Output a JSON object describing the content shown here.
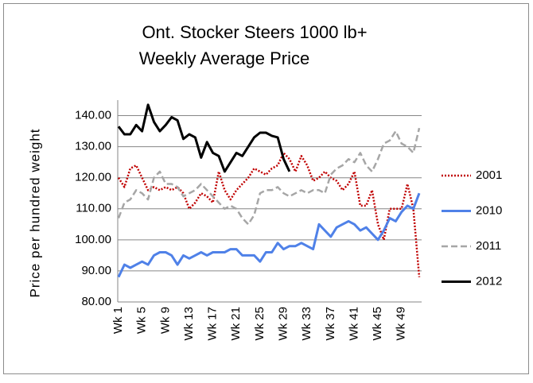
{
  "chart_data": {
    "type": "line",
    "title": "Ont. Stocker Steers 1000 lb+",
    "subtitle": "Weekly Average Price",
    "y_label": "Price per hundred weight",
    "categories": [
      "Wk 1",
      null,
      null,
      null,
      "Wk 5",
      null,
      null,
      null,
      "Wk 9",
      null,
      null,
      null,
      "Wk 13",
      null,
      null,
      null,
      "Wk 17",
      null,
      null,
      null,
      "Wk 21",
      null,
      null,
      null,
      "Wk 25",
      null,
      null,
      null,
      "Wk 29",
      null,
      null,
      null,
      "Wk 33",
      null,
      null,
      null,
      "Wk 37",
      null,
      null,
      null,
      "Wk 41",
      null,
      null,
      null,
      "Wk 45",
      null,
      null,
      null,
      "Wk 49",
      null,
      null,
      null
    ],
    "series": [
      {
        "name": "2001",
        "color": "#c00000",
        "style": "dotted",
        "values": [
          120,
          117,
          123,
          124,
          120,
          116,
          117,
          116,
          117,
          116,
          117,
          115,
          110,
          112,
          115,
          114,
          112,
          122,
          116,
          113,
          116,
          118,
          120,
          123,
          122,
          121,
          123,
          124,
          128,
          126,
          122,
          127,
          124,
          119,
          120,
          122,
          120,
          119,
          116,
          118,
          122,
          111,
          111,
          116,
          105,
          100,
          110,
          110,
          110,
          118,
          110,
          88
        ]
      },
      {
        "name": "2010",
        "color": "#4f81e8",
        "style": "solid",
        "values": [
          88,
          92,
          91,
          92,
          93,
          92,
          95,
          96,
          96,
          95,
          92,
          95,
          94,
          95,
          96,
          95,
          96,
          96,
          96,
          97,
          97,
          95,
          95,
          95,
          93,
          96,
          96,
          99,
          97,
          98,
          98,
          99,
          98,
          97,
          105,
          103,
          101,
          104,
          105,
          106,
          105,
          103,
          104,
          102,
          100,
          103,
          107,
          106,
          109,
          111,
          110,
          115
        ]
      },
      {
        "name": "2011",
        "color": "#a6a6a6",
        "style": "dashed",
        "values": [
          107,
          112,
          113,
          116,
          115,
          113,
          120,
          122,
          118,
          118,
          117,
          114,
          115,
          116,
          118,
          116,
          114,
          112,
          110,
          111,
          110,
          107,
          105,
          108,
          115,
          116,
          116,
          117,
          115,
          114,
          115,
          116,
          115,
          116,
          116,
          115,
          121,
          123,
          124,
          126,
          125,
          128,
          124,
          122,
          126,
          131,
          132,
          135,
          131,
          130,
          128,
          136
        ]
      },
      {
        "name": "2012",
        "color": "#000000",
        "style": "solid",
        "values": [
          136.5,
          134,
          134,
          137,
          135,
          143.5,
          138,
          135,
          137,
          139.5,
          138.5,
          132.5,
          134,
          133,
          126.5,
          131.5,
          128,
          127,
          122,
          125,
          128,
          127,
          130,
          133,
          134.5,
          134.5,
          133.5,
          133,
          126,
          122,
          null,
          null,
          null,
          null,
          null,
          null,
          null,
          null,
          null,
          null,
          null,
          null,
          null,
          null,
          null,
          null,
          null,
          null,
          null,
          null,
          null,
          null
        ]
      }
    ],
    "ylim": [
      80,
      145
    ],
    "yticks": [
      {
        "value": 80,
        "label": "80.00"
      },
      {
        "value": 90,
        "label": "90.00"
      },
      {
        "value": 100,
        "label": "100.00"
      },
      {
        "value": 110,
        "label": "110.00"
      },
      {
        "value": 120,
        "label": "120.00"
      },
      {
        "value": 130,
        "label": "130.00"
      },
      {
        "value": 140,
        "label": "140.00"
      }
    ],
    "grid": true,
    "legend": "right"
  }
}
